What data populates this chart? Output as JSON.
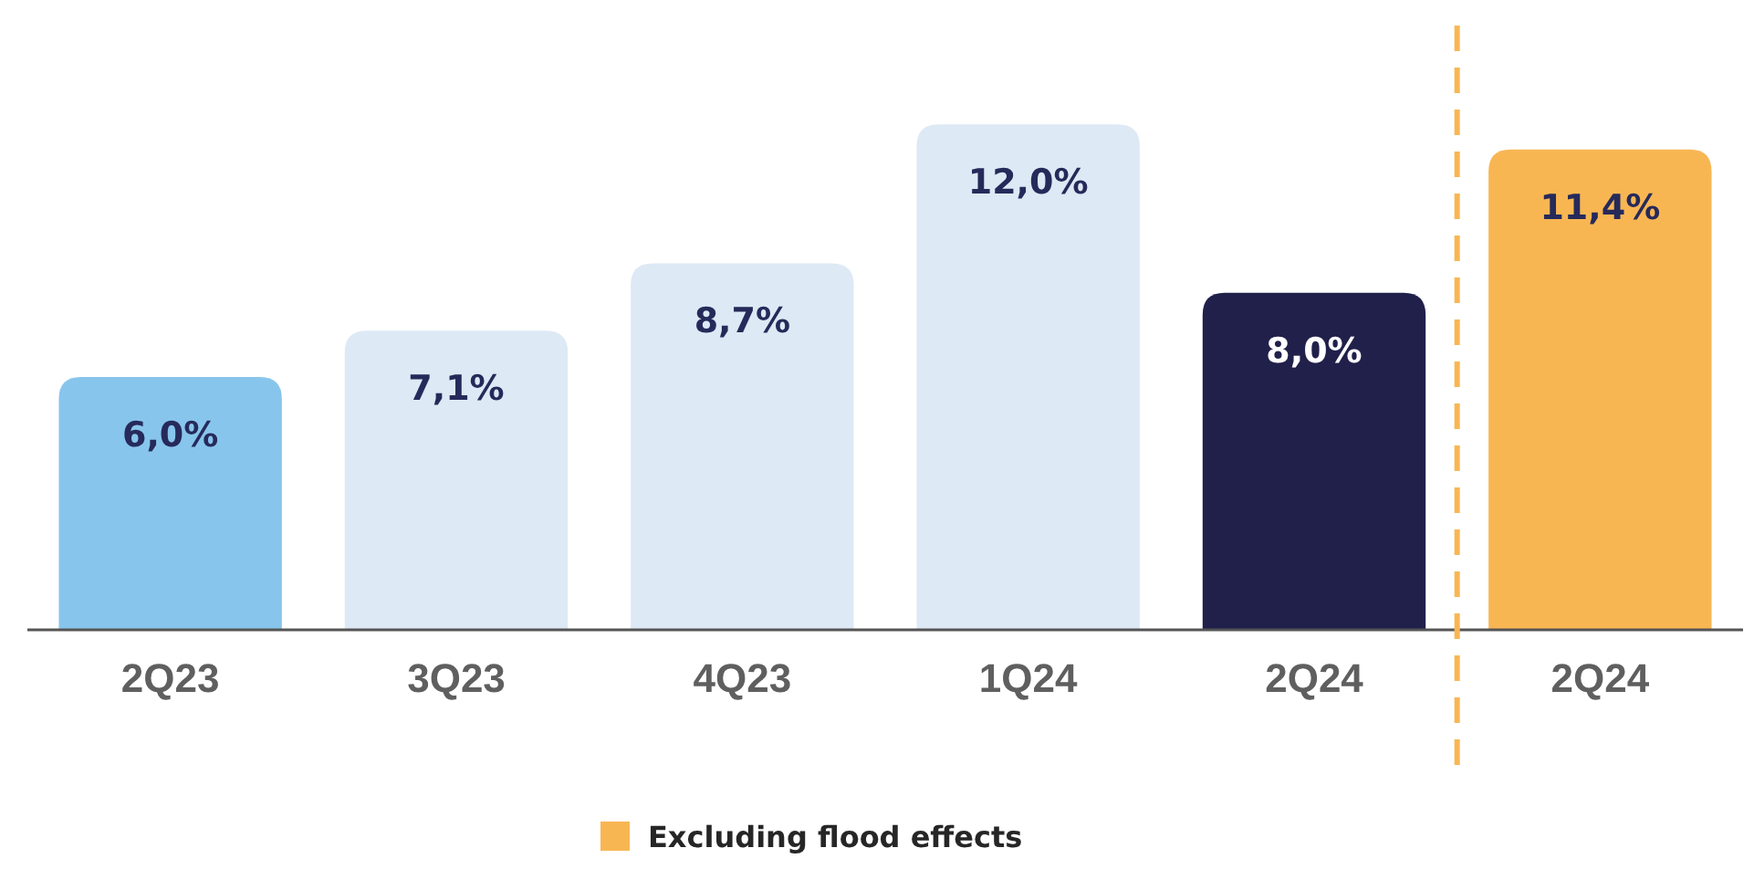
{
  "chart_data": {
    "type": "bar",
    "categories": [
      "2Q23",
      "3Q23",
      "4Q23",
      "1Q24",
      "2Q24",
      "2Q24"
    ],
    "series": [
      {
        "colors": [
          "#88c5ec",
          "#dde9f5",
          "#dde9f5",
          "#dde9f5",
          "#20204b",
          null
        ],
        "values": [
          6.0,
          7.1,
          8.7,
          12.0,
          8.0,
          null
        ],
        "value_labels": [
          "6,0%",
          "7,1%",
          "8,7%",
          "12,0%",
          "8,0%",
          null
        ]
      },
      {
        "name": "Excluding flood effects",
        "color": "#f8b653",
        "values": [
          null,
          null,
          null,
          null,
          null,
          11.4
        ],
        "value_labels": [
          null,
          null,
          null,
          null,
          null,
          "11,4%"
        ]
      }
    ],
    "tick_labels": "x",
    "legend": "bottom"
  }
}
